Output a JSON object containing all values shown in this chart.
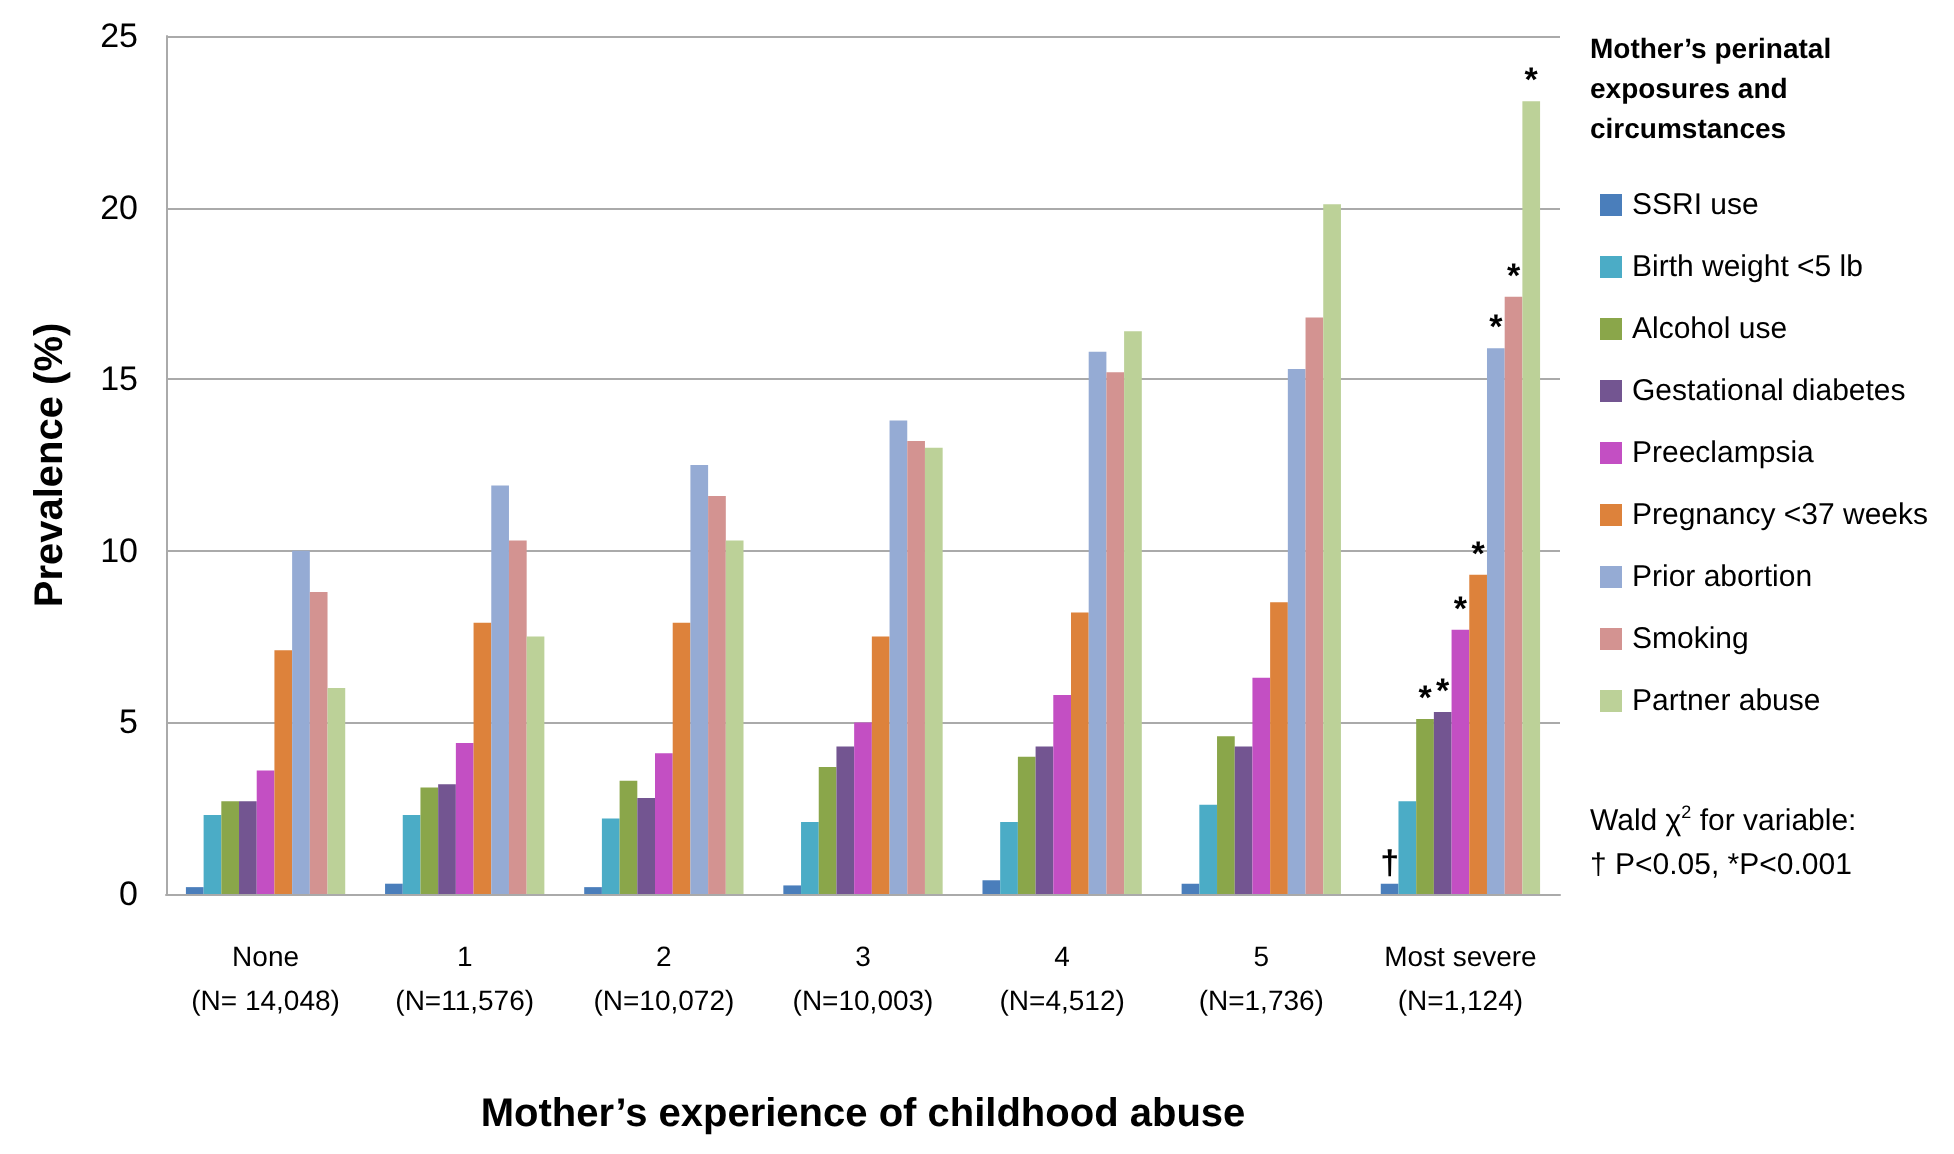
{
  "chart_data": {
    "type": "bar",
    "categories": [
      "None\n(N= 14,048)",
      "1\n(N=11,576)",
      "2\n(N=10,072)",
      "3\n(N=10,003)",
      "4\n(N=4,512)",
      "5\n(N=1,736)",
      "Most severe\n(N=1,124)"
    ],
    "xlabel": "Mother’s experience of childhood abuse",
    "ylabel": "Prevalence (%)",
    "legend_title": "Mother’s perinatal exposures and circumstances",
    "ylim": [
      0,
      25
    ],
    "yticks": [
      0,
      5,
      10,
      15,
      20,
      25
    ],
    "grid": "y",
    "legend": "right",
    "annotations": [
      "Wald χ$^{2}$ for variable:\n† P<0.05, *P<0.001"
    ],
    "series": [
      {
        "name": "SSRI use",
        "color": "#4a7ebb",
        "values": [
          0.2,
          0.3,
          0.2,
          0.25,
          0.4,
          0.3,
          0.3
        ],
        "value_labels": [
          null,
          null,
          null,
          null,
          null,
          null,
          "†"
        ]
      },
      {
        "name": "Birth weight <5 lb",
        "color": "#4bacc6",
        "values": [
          2.3,
          2.3,
          2.2,
          2.1,
          2.1,
          2.6,
          2.7
        ]
      },
      {
        "name": "Alcohol use",
        "color": "#8aa64a",
        "values": [
          2.7,
          3.1,
          3.3,
          3.7,
          4.0,
          4.6,
          5.1
        ],
        "value_labels": [
          null,
          null,
          null,
          null,
          null,
          null,
          "*"
        ]
      },
      {
        "name": "Gestational diabetes",
        "color": "#735591",
        "values": [
          2.7,
          3.2,
          2.8,
          4.3,
          4.3,
          4.3,
          5.3
        ],
        "value_labels": [
          null,
          null,
          null,
          null,
          null,
          null,
          "*"
        ]
      },
      {
        "name": "Preeclampsia",
        "color": "#c34fc3",
        "values": [
          3.6,
          4.4,
          4.1,
          5.0,
          5.8,
          6.3,
          7.7
        ],
        "value_labels": [
          null,
          null,
          null,
          null,
          null,
          null,
          "*"
        ]
      },
      {
        "name": "Pregnancy <37 weeks",
        "color": "#dd823b",
        "values": [
          7.1,
          7.9,
          7.9,
          7.5,
          8.2,
          8.5,
          9.3
        ],
        "value_labels": [
          null,
          null,
          null,
          null,
          null,
          null,
          "*"
        ]
      },
      {
        "name": "Prior abortion",
        "color": "#95abd4",
        "values": [
          10.0,
          11.9,
          12.5,
          13.8,
          15.8,
          15.3,
          15.9
        ],
        "value_labels": [
          null,
          null,
          null,
          null,
          null,
          null,
          "*"
        ]
      },
      {
        "name": "Smoking",
        "color": "#d39391",
        "values": [
          8.8,
          10.3,
          11.6,
          13.2,
          15.2,
          16.8,
          17.4
        ],
        "value_labels": [
          null,
          null,
          null,
          null,
          null,
          null,
          "*"
        ]
      },
      {
        "name": "Partner abuse",
        "color": "#bcd198",
        "values": [
          6.0,
          7.5,
          10.3,
          13.0,
          16.4,
          20.1,
          23.1
        ],
        "value_labels": [
          null,
          null,
          null,
          null,
          null,
          null,
          "*"
        ]
      }
    ]
  }
}
